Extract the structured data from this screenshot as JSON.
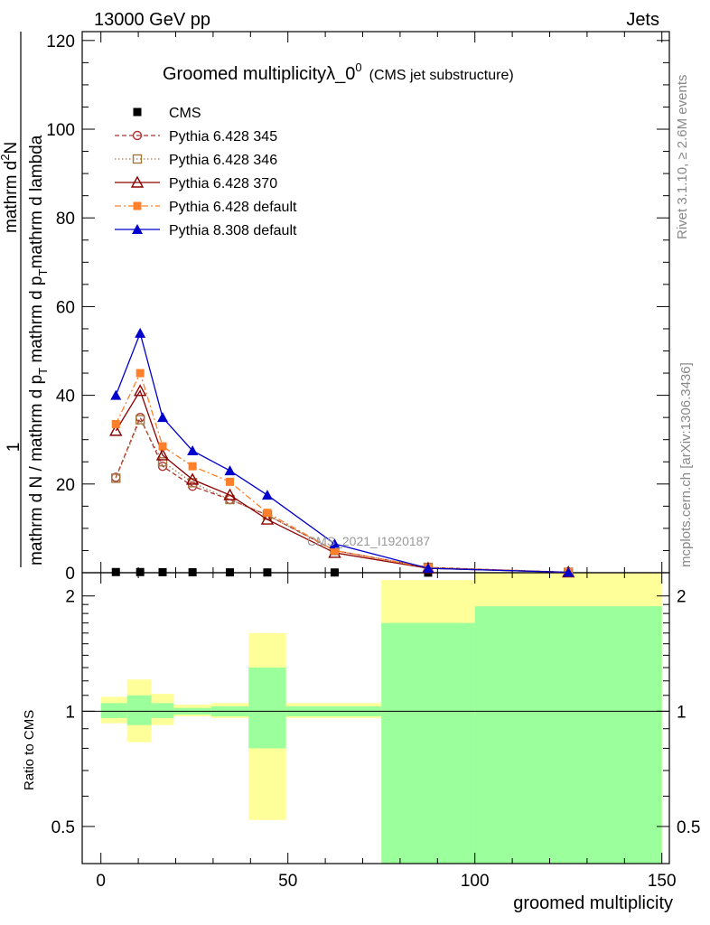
{
  "header": {
    "left": "13000 GeV pp",
    "right": "Jets"
  },
  "side": {
    "rivet": "Rivet 3.1.10, ≥ 2.6M events",
    "mcplots": "mcplots.cern.ch [arXiv:1306.3436]"
  },
  "chart_data": {
    "type": "line",
    "title": "Groomed multiplicityλ_0",
    "title_sup": "0",
    "subtitle": "(CMS jet substructure)",
    "watermark": "CMS_2021_I1920187",
    "xlabel": "groomed multiplicity",
    "ylabel_main_top": "1",
    "ylabel_main_den": "mathrm d N / mathrm d p",
    "ylabel_main_den_sub": "T",
    "ylabel_main_num": "mathrm d",
    "ylabel_main_num_sup": "2",
    "ylabel_main_num2": "N",
    "ylabel_main_num_den": "mathrm d p",
    "ylabel_main_num_den_sub": "T",
    "ylabel_main_num_den2": " mathrm d lambda",
    "ylabel_ratio": "Ratio to CMS",
    "xlim": [
      -5,
      152
    ],
    "ylim_main": [
      0,
      122
    ],
    "ylim_ratio": [
      0.4,
      2.3
    ],
    "x_ticks": [
      "0",
      "50",
      "100",
      "150"
    ],
    "x_tick_values": [
      0,
      50,
      100,
      150
    ],
    "y_ticks_main": [
      "0",
      "20",
      "40",
      "60",
      "80",
      "100",
      "120"
    ],
    "y_tick_values_main": [
      0,
      20,
      40,
      60,
      80,
      100,
      120
    ],
    "y_ticks_ratio": [
      "0.5",
      "1",
      "2"
    ],
    "y_tick_values_ratio": [
      0.5,
      1,
      2
    ],
    "legend_position": "top-left",
    "series": [
      {
        "name": "CMS",
        "color": "#000000",
        "marker": "square-filled",
        "line": "none",
        "x": [
          4,
          10.5,
          16.5,
          24.5,
          34.5,
          44.5,
          62.5,
          87.5,
          125
        ],
        "y": [
          0.15,
          0.15,
          0.12,
          0.1,
          0.08,
          0.06,
          0.05,
          0.01,
          0.0
        ]
      },
      {
        "name": "Pythia 6.428 345",
        "color": "#b03030",
        "marker": "circle-open",
        "line": "dashed",
        "x": [
          4,
          10.5,
          16.5,
          24.5,
          34.5,
          44.5,
          62.5,
          87.5,
          125
        ],
        "y": [
          21.5,
          35,
          24,
          19.5,
          16.5,
          13,
          5,
          1.2,
          0.1
        ]
      },
      {
        "name": "Pythia 6.428 346",
        "color": "#a07840",
        "marker": "square-open",
        "line": "dotted",
        "x": [
          4,
          10.5,
          16.5,
          24.5,
          34.5,
          44.5,
          62.5,
          87.5,
          125
        ],
        "y": [
          21.3,
          34.5,
          25,
          20.3,
          16.5,
          13,
          5,
          1.2,
          0.1
        ]
      },
      {
        "name": "Pythia 6.428 370",
        "color": "#8b0000",
        "marker": "triangle-open",
        "line": "solid",
        "x": [
          4,
          10.5,
          16.5,
          24.5,
          34.5,
          44.5,
          62.5,
          87.5,
          125
        ],
        "y": [
          32,
          41,
          26.5,
          21,
          17.5,
          12,
          4.5,
          1.0,
          0.1
        ]
      },
      {
        "name": "Pythia 6.428 default",
        "color": "#ff7f2a",
        "marker": "square-filled",
        "line": "dashdot",
        "x": [
          4,
          10.5,
          16.5,
          24.5,
          34.5,
          44.5,
          62.5,
          87.5,
          125
        ],
        "y": [
          33.5,
          45,
          28.5,
          24,
          20.5,
          13.5,
          5,
          1.1,
          0.1
        ]
      },
      {
        "name": "Pythia 8.308 default",
        "color": "#0000cc",
        "marker": "triangle-filled",
        "line": "solid",
        "x": [
          4,
          10.5,
          16.5,
          24.5,
          34.5,
          44.5,
          62.5,
          87.5,
          125
        ],
        "y": [
          40,
          54,
          35,
          27.5,
          23,
          17.5,
          6.5,
          1.0,
          0.1
        ]
      }
    ],
    "ratio_bands": [
      {
        "x0": 0,
        "x1": 7,
        "stat_lo": 0.96,
        "stat_hi": 1.05,
        "tot_lo": 0.93,
        "tot_hi": 1.09
      },
      {
        "x0": 7,
        "x1": 13.5,
        "stat_lo": 0.92,
        "stat_hi": 1.1,
        "tot_lo": 0.83,
        "tot_hi": 1.21
      },
      {
        "x0": 13.5,
        "x1": 19.5,
        "stat_lo": 0.96,
        "stat_hi": 1.05,
        "tot_lo": 0.92,
        "tot_hi": 1.11
      },
      {
        "x0": 19.5,
        "x1": 29.5,
        "stat_lo": 0.98,
        "stat_hi": 1.02,
        "tot_lo": 0.97,
        "tot_hi": 1.04
      },
      {
        "x0": 29.5,
        "x1": 39.5,
        "stat_lo": 0.97,
        "stat_hi": 1.03,
        "tot_lo": 0.96,
        "tot_hi": 1.05
      },
      {
        "x0": 39.5,
        "x1": 49.5,
        "stat_lo": 0.8,
        "stat_hi": 1.3,
        "tot_lo": 0.52,
        "tot_hi": 1.6
      },
      {
        "x0": 49.5,
        "x1": 75,
        "stat_lo": 0.97,
        "stat_hi": 1.03,
        "tot_lo": 0.96,
        "tot_hi": 1.05
      },
      {
        "x0": 75,
        "x1": 100,
        "stat_lo": 0.35,
        "stat_hi": 1.7,
        "tot_lo": 0.35,
        "tot_hi": 2.2
      },
      {
        "x0": 100,
        "x1": 150,
        "stat_lo": 0.35,
        "stat_hi": 1.88,
        "tot_lo": 0.35,
        "tot_hi": 2.35
      }
    ],
    "colors": {
      "stat": "#9bff9b",
      "total": "#ffff99"
    }
  }
}
